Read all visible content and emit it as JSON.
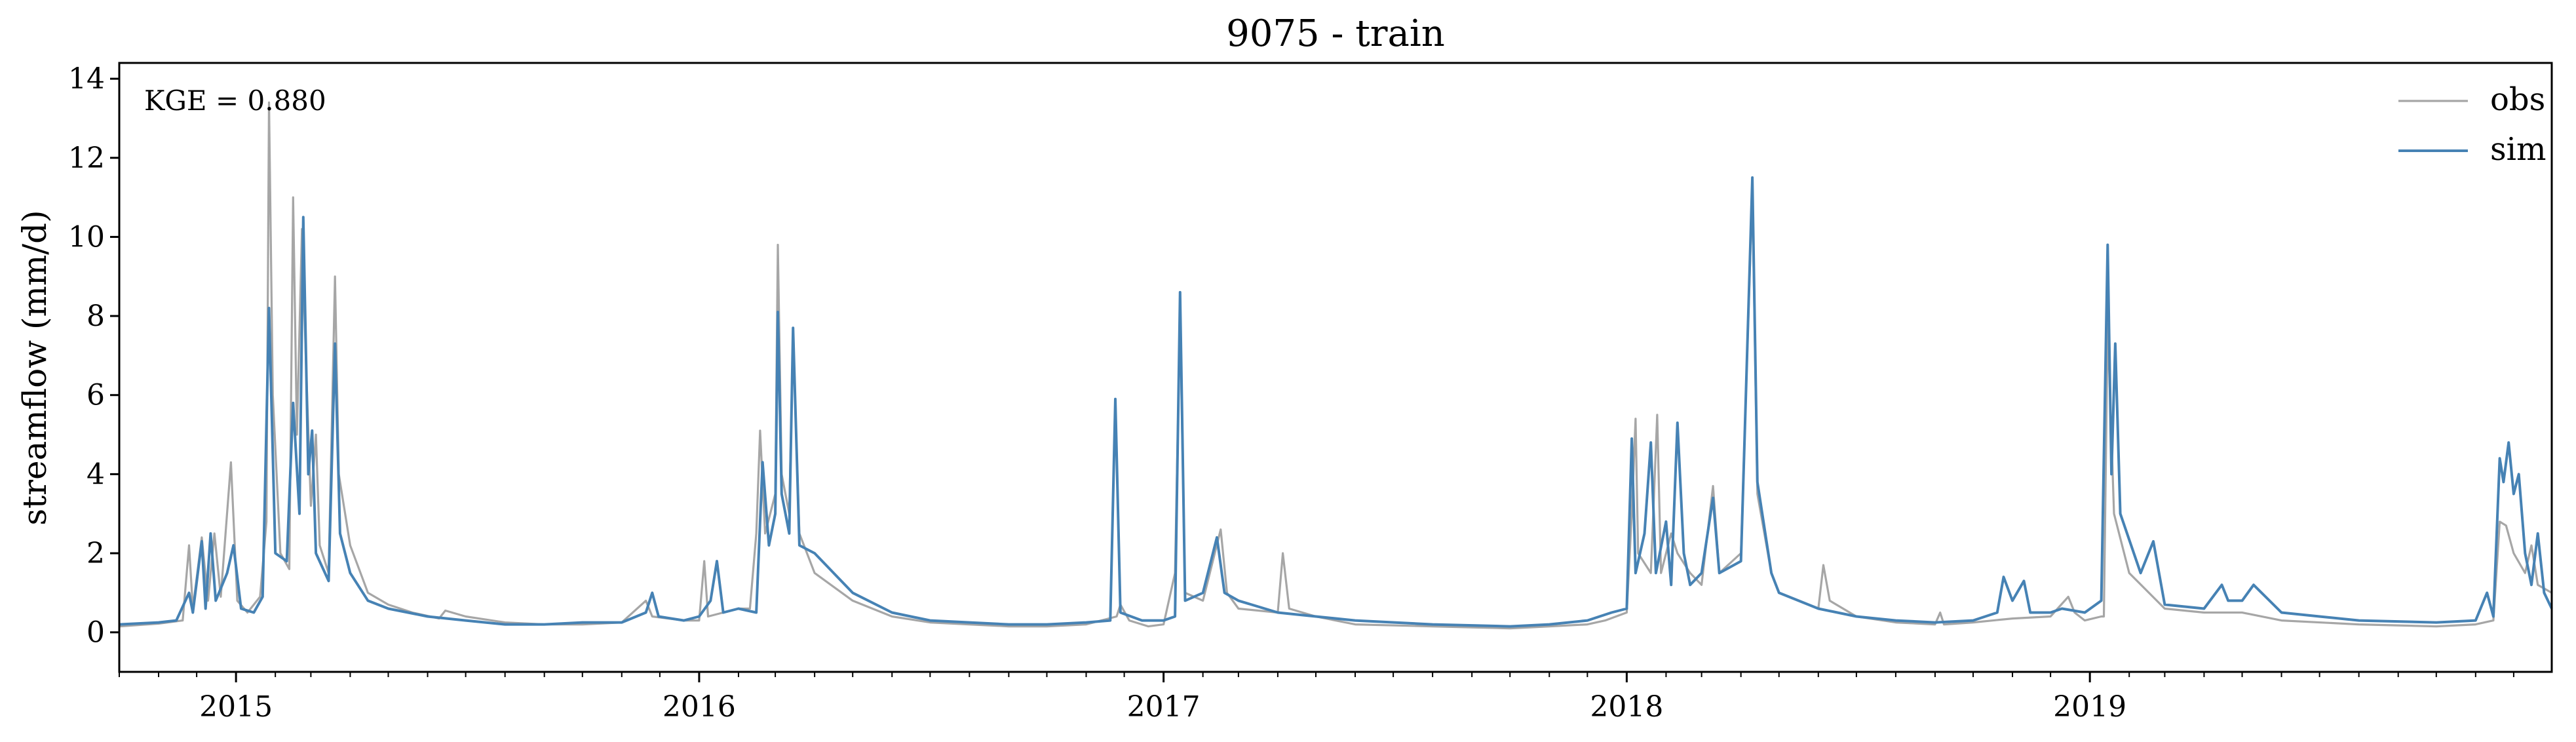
{
  "chart_data": {
    "type": "line",
    "title": "9075 - train",
    "ylabel": "streamflow (mm/d)",
    "xlabel": "",
    "annotation": "KGE = 0.880",
    "legend_position": "top-right",
    "grid": false,
    "xlim": [
      "2014-10-01",
      "2019-12-31"
    ],
    "ylim": [
      -1,
      14.4
    ],
    "y_ticks": [
      0,
      2,
      4,
      6,
      8,
      10,
      12,
      14
    ],
    "x_ticks": [
      "2015-01-01",
      "2016-01-01",
      "2017-01-01",
      "2018-01-01",
      "2019-01-01"
    ],
    "x_tick_labels": [
      "2015",
      "2016",
      "2017",
      "2018",
      "2019"
    ],
    "colors": {
      "obs": "#a6a6a6",
      "sim": "#4682b4"
    },
    "series": [
      {
        "name": "obs",
        "color": "#a6a6a6",
        "points": [
          [
            "2014-10-01",
            0.15
          ],
          [
            "2014-11-01",
            0.22
          ],
          [
            "2014-11-20",
            0.3
          ],
          [
            "2014-11-25",
            2.2
          ],
          [
            "2014-11-28",
            0.6
          ],
          [
            "2014-12-05",
            2.4
          ],
          [
            "2014-12-10",
            0.8
          ],
          [
            "2014-12-15",
            2.5
          ],
          [
            "2014-12-20",
            0.9
          ],
          [
            "2014-12-28",
            4.3
          ],
          [
            "2015-01-02",
            0.8
          ],
          [
            "2015-01-10",
            0.5
          ],
          [
            "2015-01-20",
            0.9
          ],
          [
            "2015-01-25",
            2.8
          ],
          [
            "2015-01-27",
            13.4
          ],
          [
            "2015-01-30",
            6.0
          ],
          [
            "2015-02-05",
            2.0
          ],
          [
            "2015-02-12",
            1.6
          ],
          [
            "2015-02-15",
            11.0
          ],
          [
            "2015-02-18",
            5.0
          ],
          [
            "2015-02-22",
            10.2
          ],
          [
            "2015-02-25",
            7.0
          ],
          [
            "2015-03-01",
            3.2
          ],
          [
            "2015-03-05",
            5.0
          ],
          [
            "2015-03-08",
            2.2
          ],
          [
            "2015-03-15",
            1.5
          ],
          [
            "2015-03-20",
            9.0
          ],
          [
            "2015-03-23",
            4.0
          ],
          [
            "2015-04-01",
            2.2
          ],
          [
            "2015-04-15",
            1.0
          ],
          [
            "2015-05-01",
            0.7
          ],
          [
            "2015-05-20",
            0.5
          ],
          [
            "2015-06-10",
            0.35
          ],
          [
            "2015-06-15",
            0.55
          ],
          [
            "2015-07-01",
            0.4
          ],
          [
            "2015-08-01",
            0.25
          ],
          [
            "2015-09-01",
            0.2
          ],
          [
            "2015-10-01",
            0.2
          ],
          [
            "2015-11-01",
            0.25
          ],
          [
            "2015-11-20",
            0.8
          ],
          [
            "2015-11-25",
            0.4
          ],
          [
            "2015-12-20",
            0.3
          ],
          [
            "2016-01-01",
            0.3
          ],
          [
            "2016-01-05",
            1.8
          ],
          [
            "2016-01-08",
            0.4
          ],
          [
            "2016-01-20",
            0.5
          ],
          [
            "2016-02-01",
            0.6
          ],
          [
            "2016-02-10",
            0.6
          ],
          [
            "2016-02-15",
            2.5
          ],
          [
            "2016-02-18",
            5.1
          ],
          [
            "2016-02-22",
            2.5
          ],
          [
            "2016-03-01",
            3.5
          ],
          [
            "2016-03-03",
            9.8
          ],
          [
            "2016-03-06",
            4.0
          ],
          [
            "2016-03-12",
            3.0
          ],
          [
            "2016-03-15",
            7.5
          ],
          [
            "2016-03-20",
            2.5
          ],
          [
            "2016-04-01",
            1.5
          ],
          [
            "2016-05-01",
            0.8
          ],
          [
            "2016-06-01",
            0.4
          ],
          [
            "2016-07-01",
            0.25
          ],
          [
            "2016-08-01",
            0.2
          ],
          [
            "2016-09-01",
            0.15
          ],
          [
            "2016-10-01",
            0.15
          ],
          [
            "2016-11-01",
            0.2
          ],
          [
            "2016-11-25",
            0.4
          ],
          [
            "2016-11-28",
            0.7
          ],
          [
            "2016-12-05",
            0.3
          ],
          [
            "2016-12-20",
            0.15
          ],
          [
            "2017-01-01",
            0.2
          ],
          [
            "2017-01-10",
            1.5
          ],
          [
            "2017-01-14",
            8.0
          ],
          [
            "2017-01-18",
            1.0
          ],
          [
            "2017-02-01",
            0.8
          ],
          [
            "2017-02-15",
            2.6
          ],
          [
            "2017-02-20",
            1.0
          ],
          [
            "2017-03-01",
            0.6
          ],
          [
            "2017-04-01",
            0.5
          ],
          [
            "2017-04-05",
            2.0
          ],
          [
            "2017-04-10",
            0.6
          ],
          [
            "2017-05-01",
            0.4
          ],
          [
            "2017-06-01",
            0.2
          ],
          [
            "2017-08-01",
            0.15
          ],
          [
            "2017-10-01",
            0.1
          ],
          [
            "2017-11-01",
            0.15
          ],
          [
            "2017-12-01",
            0.2
          ],
          [
            "2017-12-15",
            0.3
          ],
          [
            "2018-01-01",
            0.5
          ],
          [
            "2018-01-05",
            3.0
          ],
          [
            "2018-01-08",
            5.4
          ],
          [
            "2018-01-10",
            2.0
          ],
          [
            "2018-01-20",
            1.5
          ],
          [
            "2018-01-25",
            5.5
          ],
          [
            "2018-01-28",
            1.5
          ],
          [
            "2018-02-05",
            2.5
          ],
          [
            "2018-02-10",
            2.0
          ],
          [
            "2018-02-20",
            1.5
          ],
          [
            "2018-03-01",
            1.2
          ],
          [
            "2018-03-10",
            3.7
          ],
          [
            "2018-03-15",
            1.5
          ],
          [
            "2018-04-01",
            2.0
          ],
          [
            "2018-04-10",
            11.2
          ],
          [
            "2018-04-14",
            3.5
          ],
          [
            "2018-04-25",
            1.5
          ],
          [
            "2018-05-01",
            1.0
          ],
          [
            "2018-06-01",
            0.6
          ],
          [
            "2018-06-05",
            1.7
          ],
          [
            "2018-06-10",
            0.8
          ],
          [
            "2018-07-01",
            0.4
          ],
          [
            "2018-08-01",
            0.25
          ],
          [
            "2018-09-01",
            0.2
          ],
          [
            "2018-09-05",
            0.5
          ],
          [
            "2018-09-08",
            0.2
          ],
          [
            "2018-10-01",
            0.25
          ],
          [
            "2018-11-01",
            0.35
          ],
          [
            "2018-12-01",
            0.4
          ],
          [
            "2018-12-15",
            0.9
          ],
          [
            "2018-12-20",
            0.5
          ],
          [
            "2018-12-28",
            0.3
          ],
          [
            "2019-01-10",
            0.4
          ],
          [
            "2019-01-12",
            0.4
          ],
          [
            "2019-01-15",
            7.8
          ],
          [
            "2019-01-20",
            3.0
          ],
          [
            "2019-02-01",
            1.5
          ],
          [
            "2019-03-01",
            0.6
          ],
          [
            "2019-04-01",
            0.5
          ],
          [
            "2019-05-01",
            0.5
          ],
          [
            "2019-06-01",
            0.3
          ],
          [
            "2019-08-01",
            0.2
          ],
          [
            "2019-10-01",
            0.15
          ],
          [
            "2019-11-01",
            0.2
          ],
          [
            "2019-11-15",
            0.3
          ],
          [
            "2019-11-20",
            2.8
          ],
          [
            "2019-11-25",
            2.7
          ],
          [
            "2019-12-01",
            2.0
          ],
          [
            "2019-12-10",
            1.5
          ],
          [
            "2019-12-15",
            2.2
          ],
          [
            "2019-12-20",
            1.2
          ],
          [
            "2019-12-31",
            1.0
          ]
        ]
      },
      {
        "name": "sim",
        "color": "#4682b4",
        "points": [
          [
            "2014-10-01",
            0.2
          ],
          [
            "2014-11-01",
            0.25
          ],
          [
            "2014-11-15",
            0.3
          ],
          [
            "2014-11-25",
            1.0
          ],
          [
            "2014-11-28",
            0.5
          ],
          [
            "2014-12-05",
            2.3
          ],
          [
            "2014-12-08",
            0.6
          ],
          [
            "2014-12-12",
            2.5
          ],
          [
            "2014-12-16",
            0.8
          ],
          [
            "2014-12-25",
            1.5
          ],
          [
            "2014-12-30",
            2.2
          ],
          [
            "2015-01-05",
            0.6
          ],
          [
            "2015-01-15",
            0.5
          ],
          [
            "2015-01-22",
            0.9
          ],
          [
            "2015-01-27",
            8.2
          ],
          [
            "2015-02-01",
            2.0
          ],
          [
            "2015-02-10",
            1.8
          ],
          [
            "2015-02-15",
            5.8
          ],
          [
            "2015-02-20",
            3.0
          ],
          [
            "2015-02-23",
            10.5
          ],
          [
            "2015-02-27",
            4.0
          ],
          [
            "2015-03-02",
            5.1
          ],
          [
            "2015-03-05",
            2.0
          ],
          [
            "2015-03-15",
            1.3
          ],
          [
            "2015-03-20",
            7.3
          ],
          [
            "2015-03-24",
            2.5
          ],
          [
            "2015-04-01",
            1.5
          ],
          [
            "2015-04-15",
            0.8
          ],
          [
            "2015-05-01",
            0.6
          ],
          [
            "2015-06-01",
            0.4
          ],
          [
            "2015-07-01",
            0.3
          ],
          [
            "2015-08-01",
            0.2
          ],
          [
            "2015-09-01",
            0.2
          ],
          [
            "2015-10-01",
            0.25
          ],
          [
            "2015-11-01",
            0.25
          ],
          [
            "2015-11-20",
            0.5
          ],
          [
            "2015-11-25",
            1.0
          ],
          [
            "2015-11-30",
            0.4
          ],
          [
            "2015-12-20",
            0.3
          ],
          [
            "2016-01-01",
            0.4
          ],
          [
            "2016-01-10",
            0.8
          ],
          [
            "2016-01-15",
            1.8
          ],
          [
            "2016-01-20",
            0.5
          ],
          [
            "2016-02-01",
            0.6
          ],
          [
            "2016-02-15",
            0.5
          ],
          [
            "2016-02-20",
            4.3
          ],
          [
            "2016-02-25",
            2.2
          ],
          [
            "2016-03-01",
            3.0
          ],
          [
            "2016-03-03",
            8.1
          ],
          [
            "2016-03-06",
            3.5
          ],
          [
            "2016-03-12",
            2.5
          ],
          [
            "2016-03-15",
            7.7
          ],
          [
            "2016-03-20",
            2.2
          ],
          [
            "2016-04-01",
            2.0
          ],
          [
            "2016-05-01",
            1.0
          ],
          [
            "2016-06-01",
            0.5
          ],
          [
            "2016-07-01",
            0.3
          ],
          [
            "2016-08-01",
            0.25
          ],
          [
            "2016-09-01",
            0.2
          ],
          [
            "2016-10-01",
            0.2
          ],
          [
            "2016-11-01",
            0.25
          ],
          [
            "2016-11-20",
            0.3
          ],
          [
            "2016-11-24",
            5.9
          ],
          [
            "2016-11-28",
            0.5
          ],
          [
            "2016-12-15",
            0.3
          ],
          [
            "2017-01-01",
            0.3
          ],
          [
            "2017-01-10",
            0.4
          ],
          [
            "2017-01-14",
            8.6
          ],
          [
            "2017-01-18",
            0.8
          ],
          [
            "2017-02-01",
            1.0
          ],
          [
            "2017-02-12",
            2.4
          ],
          [
            "2017-02-18",
            1.0
          ],
          [
            "2017-03-01",
            0.8
          ],
          [
            "2017-04-01",
            0.5
          ],
          [
            "2017-05-01",
            0.4
          ],
          [
            "2017-06-01",
            0.3
          ],
          [
            "2017-08-01",
            0.2
          ],
          [
            "2017-10-01",
            0.15
          ],
          [
            "2017-11-01",
            0.2
          ],
          [
            "2017-12-01",
            0.3
          ],
          [
            "2017-12-20",
            0.5
          ],
          [
            "2018-01-01",
            0.6
          ],
          [
            "2018-01-05",
            4.9
          ],
          [
            "2018-01-08",
            1.5
          ],
          [
            "2018-01-15",
            2.5
          ],
          [
            "2018-01-20",
            4.8
          ],
          [
            "2018-01-24",
            1.5
          ],
          [
            "2018-02-01",
            2.8
          ],
          [
            "2018-02-05",
            1.2
          ],
          [
            "2018-02-10",
            5.3
          ],
          [
            "2018-02-15",
            2.0
          ],
          [
            "2018-02-20",
            1.2
          ],
          [
            "2018-03-01",
            1.5
          ],
          [
            "2018-03-10",
            3.4
          ],
          [
            "2018-03-15",
            1.5
          ],
          [
            "2018-04-01",
            1.8
          ],
          [
            "2018-04-10",
            11.5
          ],
          [
            "2018-04-14",
            3.8
          ],
          [
            "2018-04-25",
            1.5
          ],
          [
            "2018-05-01",
            1.0
          ],
          [
            "2018-06-01",
            0.6
          ],
          [
            "2018-07-01",
            0.4
          ],
          [
            "2018-08-01",
            0.3
          ],
          [
            "2018-09-01",
            0.25
          ],
          [
            "2018-10-01",
            0.3
          ],
          [
            "2018-10-20",
            0.5
          ],
          [
            "2018-10-25",
            1.4
          ],
          [
            "2018-11-01",
            0.8
          ],
          [
            "2018-11-10",
            1.3
          ],
          [
            "2018-11-15",
            0.5
          ],
          [
            "2018-12-01",
            0.5
          ],
          [
            "2018-12-10",
            0.6
          ],
          [
            "2018-12-28",
            0.5
          ],
          [
            "2019-01-10",
            0.8
          ],
          [
            "2019-01-15",
            9.8
          ],
          [
            "2019-01-18",
            4.0
          ],
          [
            "2019-01-21",
            7.3
          ],
          [
            "2019-01-25",
            3.0
          ],
          [
            "2019-02-10",
            1.5
          ],
          [
            "2019-02-20",
            2.3
          ],
          [
            "2019-03-01",
            0.7
          ],
          [
            "2019-04-01",
            0.6
          ],
          [
            "2019-04-15",
            1.2
          ],
          [
            "2019-04-20",
            0.8
          ],
          [
            "2019-05-01",
            0.8
          ],
          [
            "2019-05-10",
            1.2
          ],
          [
            "2019-06-01",
            0.5
          ],
          [
            "2019-07-01",
            0.4
          ],
          [
            "2019-08-01",
            0.3
          ],
          [
            "2019-10-01",
            0.25
          ],
          [
            "2019-11-01",
            0.3
          ],
          [
            "2019-11-10",
            1.0
          ],
          [
            "2019-11-15",
            0.4
          ],
          [
            "2019-11-20",
            4.4
          ],
          [
            "2019-11-23",
            3.8
          ],
          [
            "2019-11-27",
            4.8
          ],
          [
            "2019-12-01",
            3.5
          ],
          [
            "2019-12-05",
            4.0
          ],
          [
            "2019-12-10",
            2.0
          ],
          [
            "2019-12-15",
            1.2
          ],
          [
            "2019-12-20",
            2.5
          ],
          [
            "2019-12-25",
            1.0
          ],
          [
            "2019-12-31",
            0.6
          ]
        ]
      }
    ]
  }
}
